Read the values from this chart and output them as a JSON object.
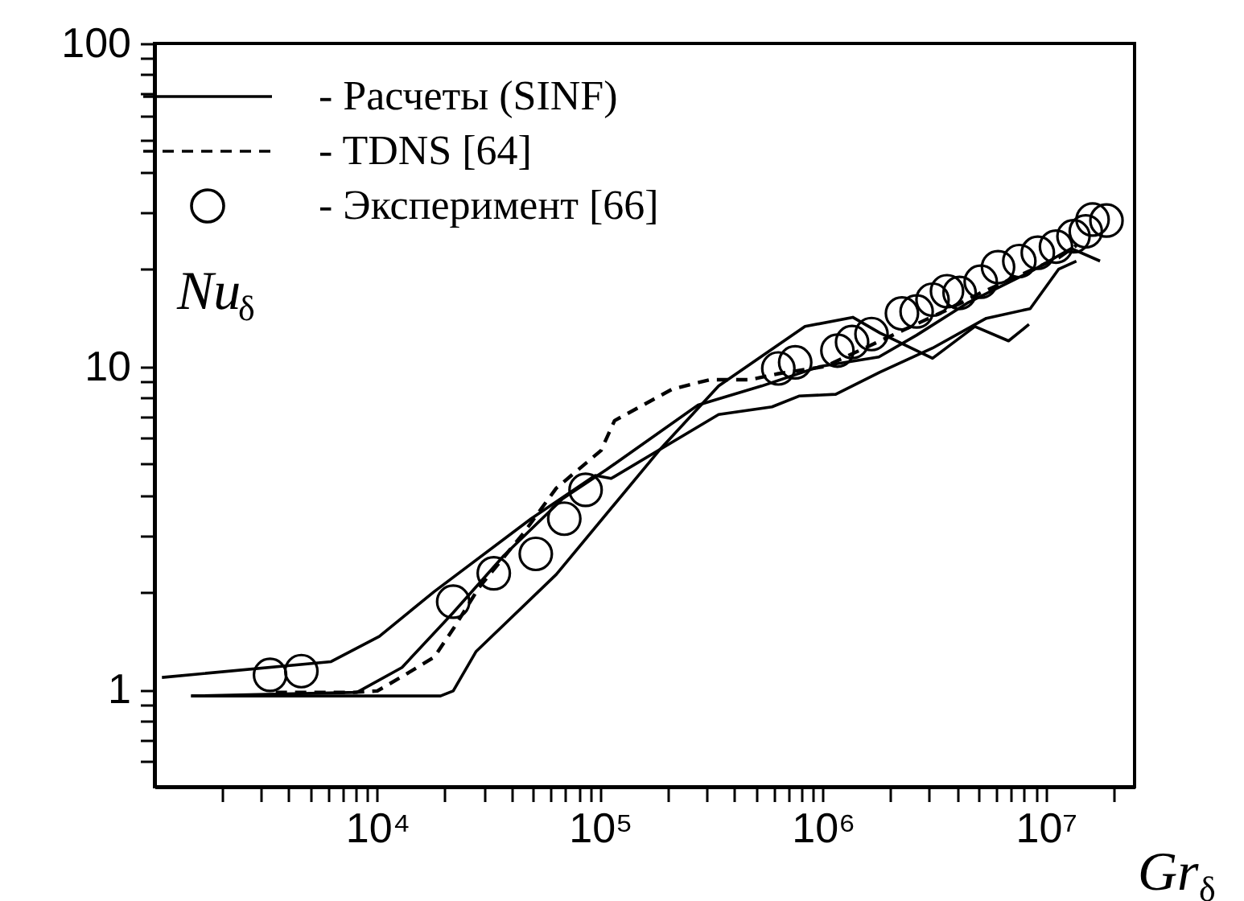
{
  "chart_data": {
    "type": "line",
    "xlabel": "Gr$_{δ}$",
    "ylabel": "Nu$_{δ}$",
    "log": "xy",
    "grid": false,
    "legend": "top left",
    "xlim": [
      1000,
      25000000
    ],
    "ylim": [
      0.5,
      100
    ],
    "xticks": [
      {
        "value": 2000,
        "label": null
      },
      {
        "value": 3000,
        "label": null
      },
      {
        "value": 4000,
        "label": null
      },
      {
        "value": 5000,
        "label": null
      },
      {
        "value": 6000,
        "label": null
      },
      {
        "value": 7000,
        "label": null
      },
      {
        "value": 8000,
        "label": null
      },
      {
        "value": 9000,
        "label": null
      },
      {
        "value": 10000,
        "label": "10⁴"
      },
      {
        "value": 20000,
        "label": null
      },
      {
        "value": 30000,
        "label": null
      },
      {
        "value": 40000,
        "label": null
      },
      {
        "value": 50000,
        "label": null
      },
      {
        "value": 60000,
        "label": null
      },
      {
        "value": 70000,
        "label": null
      },
      {
        "value": 80000,
        "label": null
      },
      {
        "value": 90000,
        "label": null
      },
      {
        "value": 100000,
        "label": "10⁵"
      },
      {
        "value": 200000,
        "label": null
      },
      {
        "value": 300000,
        "label": null
      },
      {
        "value": 400000,
        "label": null
      },
      {
        "value": 500000,
        "label": null
      },
      {
        "value": 600000,
        "label": null
      },
      {
        "value": 700000,
        "label": null
      },
      {
        "value": 800000,
        "label": null
      },
      {
        "value": 900000,
        "label": null
      },
      {
        "value": 1000000,
        "label": "10⁶"
      },
      {
        "value": 2000000,
        "label": null
      },
      {
        "value": 3000000,
        "label": null
      },
      {
        "value": 4000000,
        "label": null
      },
      {
        "value": 5000000,
        "label": null
      },
      {
        "value": 6000000,
        "label": null
      },
      {
        "value": 7000000,
        "label": null
      },
      {
        "value": 8000000,
        "label": null
      },
      {
        "value": 9000000,
        "label": null
      },
      {
        "value": 10000000,
        "label": "10⁷"
      },
      {
        "value": 20000000,
        "label": null
      }
    ],
    "yticks": [
      {
        "value": 0.6,
        "label": null
      },
      {
        "value": 0.7,
        "label": null
      },
      {
        "value": 0.8,
        "label": null
      },
      {
        "value": 0.9,
        "label": null
      },
      1,
      {
        "value": 2,
        "label": null
      },
      {
        "value": 3,
        "label": null
      },
      {
        "value": 4,
        "label": null
      },
      {
        "value": 5,
        "label": null
      },
      {
        "value": 6,
        "label": null
      },
      {
        "value": 7,
        "label": null
      },
      {
        "value": 8,
        "label": null
      },
      {
        "value": 9,
        "label": null
      },
      10,
      {
        "value": 20,
        "label": null
      },
      {
        "value": 30,
        "label": null
      },
      {
        "value": 40,
        "label": null
      },
      {
        "value": 50,
        "label": null
      },
      {
        "value": 60,
        "label": null
      },
      {
        "value": 70,
        "label": null
      },
      {
        "value": 80,
        "label": null
      },
      {
        "value": 90,
        "label": null
      },
      100
    ],
    "series": [
      {
        "name": "- Расчеты (SINF)",
        "line_style": "solid",
        "color": "#000000",
        "x": [
          1080,
          6200,
          10200,
          18000,
          49000,
          95000,
          112000,
          340000,
          590000,
          780000,
          1140000,
          1800000,
          3100000,
          5400000,
          8500000,
          11400000,
          13700000
        ],
        "values": [
          1.09,
          1.22,
          1.46,
          2.01,
          3.38,
          4.6,
          4.5,
          7.1,
          7.5,
          8.1,
          8.2,
          9.6,
          11.4,
          14.1,
          15.1,
          20,
          21.2
        ]
      },
      {
        "line_style": "solid",
        "color": "#000000",
        "x": [
          1460,
          8100,
          12900,
          21900,
          37000,
          68000,
          107000,
          275000,
          530000,
          970000,
          1780000,
          2630000,
          4500000,
          8700000,
          13000000,
          17500000
        ],
        "values": [
          0.955,
          0.98,
          1.17,
          1.73,
          2.6,
          3.9,
          4.8,
          7.6,
          8.7,
          10.0,
          10.7,
          12.5,
          15.8,
          19.8,
          23.2,
          21.2
        ]
      },
      {
        "line_style": "solid",
        "color": "#000000",
        "x": [
          1460,
          19200,
          21900,
          27700,
          63500,
          184000,
          340000,
          830000,
          1360000,
          1800000,
          3100000,
          4800000,
          6800000,
          8400000
        ],
        "values": [
          0.955,
          0.955,
          0.99,
          1.31,
          2.27,
          5.5,
          8.7,
          13.3,
          14.2,
          12.7,
          10.6,
          13.3,
          12.0,
          13.5
        ]
      },
      {
        "name": "- TDNS [64]",
        "line_style": "dashed",
        "color": "#000000",
        "x": [
          3500,
          7800,
          10000,
          13300,
          18000,
          21900,
          28600,
          45500,
          63500,
          101000,
          116000,
          210000,
          310000,
          470000,
          630000,
          1020000,
          2100000,
          3700000,
          5100000,
          11400000,
          13700000
        ],
        "values": [
          0.98,
          0.98,
          0.99,
          1.11,
          1.26,
          1.54,
          2.07,
          3.06,
          4.2,
          5.5,
          6.8,
          8.5,
          9.1,
          9.1,
          9.5,
          10,
          12.6,
          15.1,
          16.9,
          21.7,
          23.7
        ]
      },
      {
        "name": "- Эксперимент [66]",
        "type": "scatter",
        "marker": "circle",
        "color": "#000000",
        "x": [
          3300,
          4560,
          21900,
          33300,
          51400,
          69000,
          86000,
          630000,
          750000,
          1160000,
          1350000,
          1650000,
          2260000,
          2630000,
          3100000,
          3600000,
          4100000,
          5100000,
          6100000,
          7600000,
          9200000,
          11100000,
          13300000,
          15100000,
          16200000,
          18700000
        ],
        "values": [
          1.11,
          1.14,
          1.87,
          2.29,
          2.63,
          3.38,
          4.15,
          9.86,
          10.3,
          11.2,
          11.9,
          12.6,
          14.6,
          14.8,
          16.1,
          17.1,
          16.9,
          18.3,
          20.3,
          21.2,
          22.5,
          23.5,
          25.3,
          26.2,
          28.5,
          28.3
        ]
      }
    ]
  }
}
